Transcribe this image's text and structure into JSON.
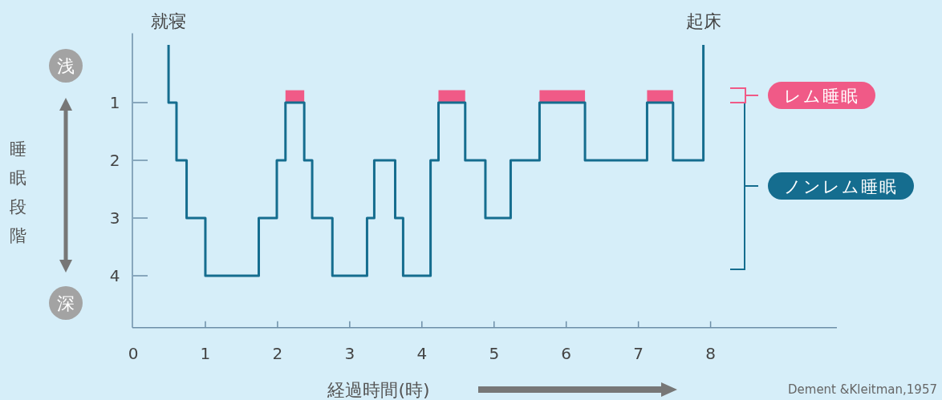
{
  "chart_data": {
    "type": "step",
    "xlabel": "経過時間(時)",
    "ylabel": "睡眠段階",
    "xlim": [
      0,
      9.75
    ],
    "xticks": [
      0,
      1,
      2,
      3,
      4,
      5,
      6,
      7,
      8
    ],
    "ylim": [
      4.9,
      -0.2
    ],
    "yticks": [
      1,
      2,
      3,
      4
    ],
    "legend": "right",
    "series": [
      {
        "name": "ノンレム睡眠",
        "color": "#156d8f",
        "x": [
          0.49,
          0.49,
          0.6,
          0.74,
          1.0,
          1.74,
          1.99,
          2.11,
          2.37,
          2.48,
          2.76,
          3.24,
          3.34,
          3.63,
          3.74,
          4.12,
          4.23,
          4.6,
          4.88,
          5.23,
          5.63,
          6.26,
          7.12,
          7.48,
          7.9
        ],
        "values": [
          0,
          1,
          2,
          3,
          4,
          3,
          2,
          1,
          2,
          3,
          4,
          3,
          2,
          3,
          4,
          2,
          1,
          2,
          3,
          2,
          1,
          2,
          1,
          2,
          0
        ]
      },
      {
        "name": "レム睡眠",
        "type": "line",
        "color": "#f05a87",
        "x": [
          2.11,
          2.37
        ],
        "values": [
          0.89,
          0.89
        ]
      },
      {
        "type": "line",
        "color": "#f05a87",
        "x": [
          4.23,
          4.6
        ],
        "values": [
          0.89,
          0.89
        ]
      },
      {
        "type": "line",
        "color": "#f05a87",
        "x": [
          5.63,
          6.26
        ],
        "values": [
          0.89,
          0.89
        ]
      },
      {
        "type": "line",
        "color": "#f05a87",
        "x": [
          7.12,
          7.48
        ],
        "values": [
          0.89,
          0.89
        ]
      }
    ],
    "annotations": [
      {
        "text": "就寝",
        "x": 0.49,
        "y": 0
      },
      {
        "text": "起床",
        "x": 7.9,
        "y": 0
      },
      "浅",
      "深",
      "Dement &Kleitman,1957"
    ]
  }
}
